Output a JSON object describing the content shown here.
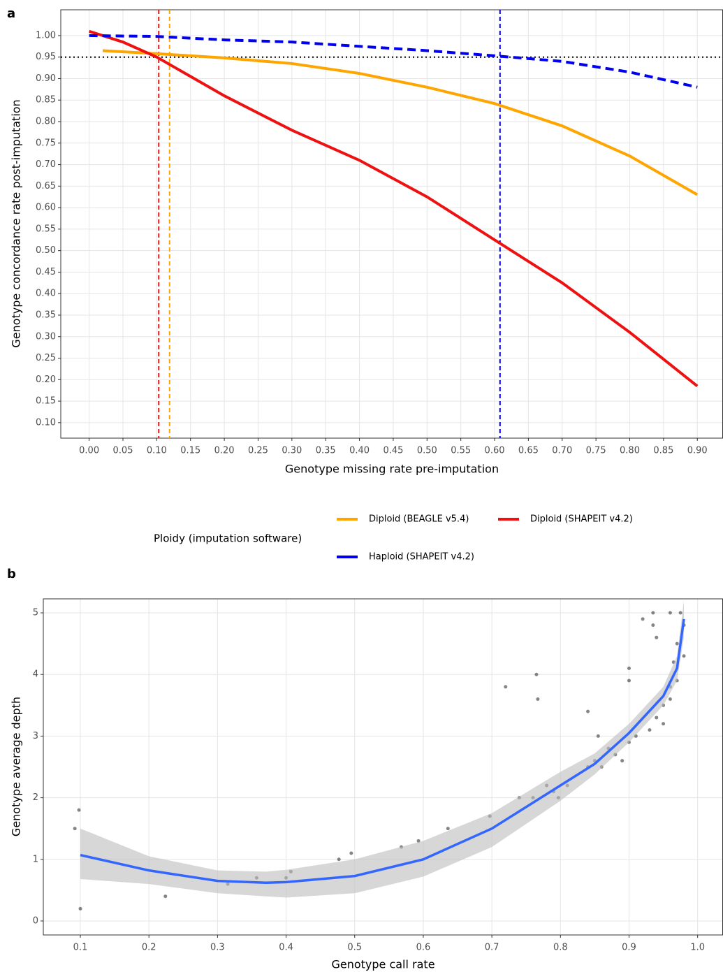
{
  "chart_data": [
    {
      "type": "line",
      "panel_label": "a",
      "x_label": "Genotype missing rate pre-imputation",
      "y_label": "Genotype concordance rate post-imputation",
      "xlim": [
        -0.042,
        0.938
      ],
      "ylim": [
        0.064,
        1.06
      ],
      "xticks": [
        {
          "value": 0,
          "label": "0.00"
        },
        {
          "value": 0.05,
          "label": "0.05"
        },
        {
          "value": 0.1,
          "label": "0.10"
        },
        {
          "value": 0.15,
          "label": "0.15"
        },
        {
          "value": 0.2,
          "label": "0.20"
        },
        {
          "value": 0.25,
          "label": "0.25"
        },
        {
          "value": 0.3,
          "label": "0.30"
        },
        {
          "value": 0.35,
          "label": "0.35"
        },
        {
          "value": 0.4,
          "label": "0.40"
        },
        {
          "value": 0.45,
          "label": "0.45"
        },
        {
          "value": 0.5,
          "label": "0.50"
        },
        {
          "value": 0.55,
          "label": "0.55"
        },
        {
          "value": 0.6,
          "label": "0.60"
        },
        {
          "value": 0.65,
          "label": "0.65"
        },
        {
          "value": 0.7,
          "label": "0.70"
        },
        {
          "value": 0.75,
          "label": "0.75"
        },
        {
          "value": 0.8,
          "label": "0.80"
        },
        {
          "value": 0.85,
          "label": "0.85"
        },
        {
          "value": 0.9,
          "label": "0.90"
        }
      ],
      "yticks": [
        {
          "value": 0.1,
          "label": "0.10"
        },
        {
          "value": 0.15,
          "label": "0.15"
        },
        {
          "value": 0.2,
          "label": "0.20"
        },
        {
          "value": 0.25,
          "label": "0.25"
        },
        {
          "value": 0.3,
          "label": "0.30"
        },
        {
          "value": 0.35,
          "label": "0.35"
        },
        {
          "value": 0.4,
          "label": "0.40"
        },
        {
          "value": 0.45,
          "label": "0.45"
        },
        {
          "value": 0.5,
          "label": "0.50"
        },
        {
          "value": 0.55,
          "label": "0.55"
        },
        {
          "value": 0.6,
          "label": "0.60"
        },
        {
          "value": 0.65,
          "label": "0.65"
        },
        {
          "value": 0.7,
          "label": "0.70"
        },
        {
          "value": 0.75,
          "label": "0.75"
        },
        {
          "value": 0.8,
          "label": "0.80"
        },
        {
          "value": 0.85,
          "label": "0.85"
        },
        {
          "value": 0.9,
          "label": "0.90"
        },
        {
          "value": 0.95,
          "label": "0.95"
        },
        {
          "value": 1,
          "label": "1.00"
        }
      ],
      "grid": true,
      "legend_title": "Ploidy (imputation software)",
      "series": [
        {
          "name": "Diploid (BEAGLE v5.4)",
          "color": "#ffa500",
          "dashed": false,
          "x": [
            0.02,
            0.1,
            0.2,
            0.3,
            0.4,
            0.5,
            0.6,
            0.7,
            0.8,
            0.9
          ],
          "values": [
            0.965,
            0.958,
            0.948,
            0.935,
            0.912,
            0.88,
            0.842,
            0.79,
            0.72,
            0.63
          ]
        },
        {
          "name": "Diploid (SHAPEIT v4.2)",
          "color": "#ee1111",
          "dashed": false,
          "x": [
            0,
            0.05,
            0.1,
            0.15,
            0.2,
            0.3,
            0.4,
            0.5,
            0.6,
            0.7,
            0.8,
            0.9
          ],
          "values": [
            1.01,
            0.985,
            0.95,
            0.905,
            0.86,
            0.78,
            0.71,
            0.625,
            0.525,
            0.425,
            0.31,
            0.185
          ]
        },
        {
          "name": "Haploid (SHAPEIT v4.2)",
          "color": "#0000ee",
          "dashed": true,
          "x": [
            0,
            0.1,
            0.2,
            0.3,
            0.4,
            0.5,
            0.6,
            0.7,
            0.8,
            0.9
          ],
          "values": [
            1.0,
            0.998,
            0.99,
            0.985,
            0.975,
            0.965,
            0.953,
            0.94,
            0.915,
            0.88
          ]
        }
      ],
      "vlines": [
        {
          "value": 0.103,
          "color": "#ee1111"
        },
        {
          "value": 0.119,
          "color": "#ffa500"
        },
        {
          "value": 0.608,
          "color": "#0000ee"
        }
      ],
      "hlines": [
        {
          "value": 0.95,
          "color": "#000000"
        }
      ]
    },
    {
      "type": "scatter",
      "panel_label": "b",
      "x_label": "Genotype call rate",
      "y_label": "Genotype average depth",
      "xlim": [
        0.046,
        1.037
      ],
      "ylim": [
        -0.227,
        5.227
      ],
      "xticks": [
        0.1,
        0.2,
        0.3,
        0.4,
        0.5,
        0.6,
        0.7,
        0.8,
        0.9,
        {
          "value": 1,
          "label": "1.0"
        }
      ],
      "yticks": [
        0,
        1,
        2,
        3,
        4,
        5
      ],
      "grid": true,
      "color": "#333333",
      "x": [
        0.092,
        0.098,
        0.1,
        0.224,
        0.315,
        0.357,
        0.4,
        0.407,
        0.477,
        0.495,
        0.568,
        0.593,
        0.636,
        0.697,
        0.72,
        0.74,
        0.76,
        0.765,
        0.767,
        0.78,
        0.79,
        0.797,
        0.81,
        0.84,
        0.84,
        0.85,
        0.855,
        0.86,
        0.87,
        0.88,
        0.89,
        0.9,
        0.9,
        0.9,
        0.91,
        0.92,
        0.935,
        0.935,
        0.93,
        0.94,
        0.94,
        0.95,
        0.96,
        0.96,
        0.965,
        0.97,
        0.975,
        0.98,
        0.98,
        0.97,
        0.96,
        0.95
      ],
      "values": [
        1.5,
        1.8,
        0.2,
        0.4,
        0.6,
        0.7,
        0.7,
        0.8,
        1.0,
        1.1,
        1.2,
        1.3,
        1.5,
        1.7,
        3.8,
        2.0,
        2.0,
        4.0,
        3.6,
        2.2,
        2.1,
        2.0,
        2.2,
        3.4,
        2.5,
        2.6,
        3.0,
        2.5,
        2.8,
        2.7,
        2.6,
        2.9,
        4.1,
        3.9,
        3.0,
        4.9,
        5.0,
        4.8,
        3.1,
        3.3,
        4.6,
        3.5,
        5.0,
        3.8,
        4.2,
        4.5,
        5.0,
        4.8,
        4.3,
        3.9,
        3.6,
        3.2
      ],
      "fit": {
        "color": "#3366ff",
        "band_color": "#bdbdbd",
        "x": [
          0.1,
          0.2,
          0.3,
          0.37,
          0.4,
          0.5,
          0.6,
          0.7,
          0.8,
          0.85,
          0.9,
          0.95,
          0.97,
          0.98
        ],
        "values": [
          1.07,
          0.82,
          0.65,
          0.62,
          0.63,
          0.73,
          1.0,
          1.5,
          2.2,
          2.55,
          3.05,
          3.65,
          4.1,
          4.9
        ],
        "lower": [
          0.68,
          0.6,
          0.45,
          0.4,
          0.38,
          0.45,
          0.72,
          1.2,
          1.95,
          2.38,
          2.9,
          3.5,
          3.9,
          4.6
        ],
        "upper": [
          1.5,
          1.05,
          0.82,
          0.8,
          0.83,
          1.0,
          1.3,
          1.75,
          2.42,
          2.72,
          3.2,
          3.8,
          4.3,
          5.2
        ]
      }
    }
  ]
}
